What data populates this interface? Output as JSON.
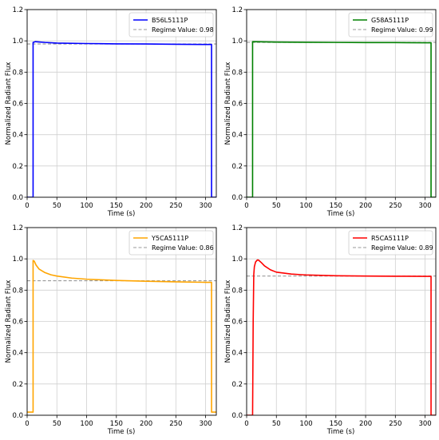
{
  "chart_data": [
    {
      "type": "line",
      "xlabel": "Time (s)",
      "ylabel": "Normalized Radiant Flux",
      "xlim": [
        0,
        318
      ],
      "ylim": [
        0,
        1.2
      ],
      "xticks": [
        "0",
        "50",
        "100",
        "150",
        "200",
        "250",
        "300"
      ],
      "yticks": [
        "0.0",
        "0.2",
        "0.4",
        "0.6",
        "0.8",
        "1.0",
        "1.2"
      ],
      "grid": true,
      "legend_position": "top-right",
      "series": [
        {
          "name": "B56L5111P",
          "color": "#0000ff",
          "points": [
            [
              0,
              0
            ],
            [
              10,
              0
            ],
            [
              10,
              0.99
            ],
            [
              14,
              0.995
            ],
            [
              20,
              0.993
            ],
            [
              30,
              0.99
            ],
            [
              50,
              0.986
            ],
            [
              100,
              0.983
            ],
            [
              150,
              0.981
            ],
            [
              200,
              0.98
            ],
            [
              250,
              0.978
            ],
            [
              300,
              0.977
            ],
            [
              310,
              0.977
            ],
            [
              310,
              0
            ],
            [
              318,
              0
            ]
          ]
        },
        {
          "name": "Regime Value: 0.98",
          "color": "#999999",
          "dashed": true,
          "points": [
            [
              0,
              0.98
            ],
            [
              318,
              0.98
            ]
          ]
        }
      ]
    },
    {
      "type": "line",
      "xlabel": "Time (s)",
      "ylabel": "Normalized Radiant Flux",
      "xlim": [
        0,
        318
      ],
      "ylim": [
        0,
        1.2
      ],
      "xticks": [
        "0",
        "50",
        "100",
        "150",
        "200",
        "250",
        "300"
      ],
      "yticks": [
        "0.0",
        "0.2",
        "0.4",
        "0.6",
        "0.8",
        "1.0",
        "1.2"
      ],
      "grid": true,
      "legend_position": "top-right",
      "series": [
        {
          "name": "G58A5111P",
          "color": "#008000",
          "points": [
            [
              0,
              0
            ],
            [
              10,
              0
            ],
            [
              10,
              0.995
            ],
            [
              20,
              0.994
            ],
            [
              50,
              0.992
            ],
            [
              100,
              0.991
            ],
            [
              150,
              0.99
            ],
            [
              200,
              0.989
            ],
            [
              250,
              0.989
            ],
            [
              300,
              0.988
            ],
            [
              310,
              0.988
            ],
            [
              310,
              0
            ],
            [
              318,
              0
            ]
          ]
        },
        {
          "name": "Regime Value: 0.99",
          "color": "#999999",
          "dashed": true,
          "points": [
            [
              0,
              0.99
            ],
            [
              318,
              0.99
            ]
          ]
        }
      ]
    },
    {
      "type": "line",
      "xlabel": "Time (s)",
      "ylabel": "Normalized Radiant Flux",
      "xlim": [
        0,
        318
      ],
      "ylim": [
        0,
        1.2
      ],
      "xticks": [
        "0",
        "50",
        "100",
        "150",
        "200",
        "250",
        "300"
      ],
      "yticks": [
        "0.0",
        "0.2",
        "0.4",
        "0.6",
        "0.8",
        "1.0",
        "1.2"
      ],
      "grid": true,
      "legend_position": "top-right",
      "series": [
        {
          "name": "Y5CA5111P",
          "color": "#ffa500",
          "points": [
            [
              0,
              0.02
            ],
            [
              10,
              0.02
            ],
            [
              10,
              0.99
            ],
            [
              12,
              0.985
            ],
            [
              15,
              0.96
            ],
            [
              20,
              0.935
            ],
            [
              30,
              0.912
            ],
            [
              40,
              0.898
            ],
            [
              50,
              0.89
            ],
            [
              75,
              0.877
            ],
            [
              100,
              0.87
            ],
            [
              125,
              0.866
            ],
            [
              150,
              0.862
            ],
            [
              200,
              0.857
            ],
            [
              250,
              0.853
            ],
            [
              300,
              0.85
            ],
            [
              310,
              0.85
            ],
            [
              310,
              0.02
            ],
            [
              318,
              0.02
            ]
          ]
        },
        {
          "name": "Regime Value: 0.86",
          "color": "#999999",
          "dashed": true,
          "points": [
            [
              0,
              0.86
            ],
            [
              318,
              0.86
            ]
          ]
        }
      ]
    },
    {
      "type": "line",
      "xlabel": "Time (s)",
      "ylabel": "Normalized Radiant Flux",
      "xlim": [
        0,
        318
      ],
      "ylim": [
        0,
        1.2
      ],
      "xticks": [
        "0",
        "50",
        "100",
        "150",
        "200",
        "250",
        "300"
      ],
      "yticks": [
        "0.0",
        "0.2",
        "0.4",
        "0.6",
        "0.8",
        "1.0",
        "1.2"
      ],
      "grid": true,
      "legend_position": "top-right",
      "series": [
        {
          "name": "R5CA5111P",
          "color": "#ff0000",
          "points": [
            [
              0,
              0
            ],
            [
              10,
              0
            ],
            [
              11,
              0.6
            ],
            [
              12,
              0.9
            ],
            [
              13,
              0.95
            ],
            [
              15,
              0.98
            ],
            [
              18,
              0.993
            ],
            [
              20,
              0.992
            ],
            [
              25,
              0.975
            ],
            [
              30,
              0.955
            ],
            [
              40,
              0.93
            ],
            [
              50,
              0.915
            ],
            [
              75,
              0.903
            ],
            [
              100,
              0.897
            ],
            [
              150,
              0.892
            ],
            [
              200,
              0.89
            ],
            [
              250,
              0.889
            ],
            [
              300,
              0.888
            ],
            [
              310,
              0.888
            ],
            [
              310,
              0
            ],
            [
              318,
              0
            ]
          ]
        },
        {
          "name": "Regime Value: 0.89",
          "color": "#999999",
          "dashed": true,
          "points": [
            [
              0,
              0.89
            ],
            [
              318,
              0.89
            ]
          ]
        }
      ]
    }
  ]
}
